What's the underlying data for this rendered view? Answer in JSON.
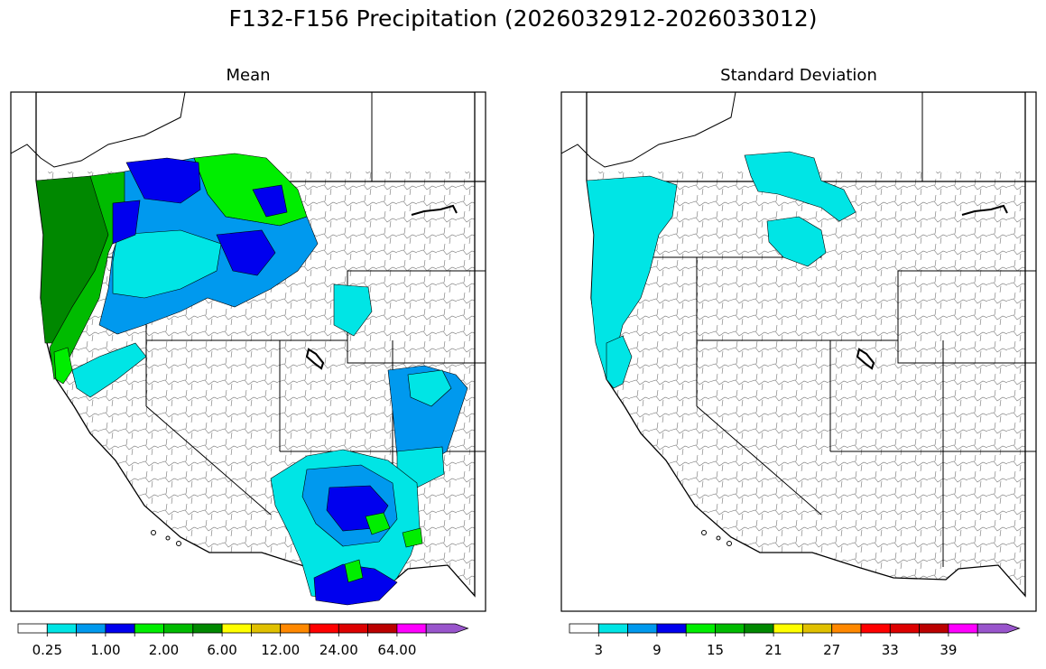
{
  "suptitle": "F132-F156 Precipitation (2026032912-2026033012)",
  "panels": [
    {
      "title": "Mean",
      "colorbar": {
        "colors": [
          "#ffffff",
          "#00e5e5",
          "#0099ee",
          "#0000ee",
          "#00ee00",
          "#00bb00",
          "#008800",
          "#ffff00",
          "#e0c000",
          "#ff8800",
          "#ff0000",
          "#dd0000",
          "#bb0000",
          "#ff00ff",
          "#9955cc"
        ],
        "tick_labels": [
          "0.25",
          "1.00",
          "2.00",
          "6.00",
          "12.00",
          "24.00",
          "64.00"
        ],
        "extend": "max"
      }
    },
    {
      "title": "Standard Deviation",
      "colorbar": {
        "colors": [
          "#ffffff",
          "#00e5e5",
          "#0099ee",
          "#0000ee",
          "#00ee00",
          "#00bb00",
          "#008800",
          "#ffff00",
          "#e0c000",
          "#ff8800",
          "#ff0000",
          "#dd0000",
          "#bb0000",
          "#ff00ff",
          "#9955cc"
        ],
        "tick_labels": [
          "3",
          "9",
          "15",
          "21",
          "27",
          "33",
          "39"
        ],
        "extend": "max"
      }
    }
  ],
  "chart_data": [
    {
      "type": "heatmap",
      "subtype": "basin choropleth map (western United States)",
      "title": "Mean",
      "legend": "bottom",
      "scale_ticks": [
        "0.25",
        "1.00",
        "2.00",
        "6.00",
        "12.00",
        "24.00",
        "64.00"
      ],
      "regions": [
        {
          "region": "Pacific Northwest coast",
          "color": "#008800"
        },
        {
          "region": "Cascades / western Oregon",
          "color": "#00bb00"
        },
        {
          "region": "Northern Rockies (Idaho, western Montana)",
          "color": "#0099ee"
        },
        {
          "region": "Northern Rockies core",
          "color": "#0000ee"
        },
        {
          "region": "Northwest Montana",
          "color": "#00ee00"
        },
        {
          "region": "Southern Rockies / Colorado",
          "color": "#0099ee"
        },
        {
          "region": "Arizona / New Mexico",
          "color": "#0000ee"
        },
        {
          "region": "Great Basin, California, Nevada, Utah",
          "color": "#ffffff"
        }
      ]
    },
    {
      "type": "heatmap",
      "subtype": "basin choropleth map (western United States)",
      "title": "Standard Deviation",
      "legend": "bottom",
      "scale_ticks": [
        "3",
        "9",
        "15",
        "21",
        "27",
        "33",
        "39"
      ],
      "regions": [
        {
          "region": "Pacific Northwest coast",
          "color": "#00e5e5"
        },
        {
          "region": "Northern Idaho / western Montana",
          "color": "#00e5e5"
        },
        {
          "region": "Rest of western US",
          "color": "#ffffff"
        }
      ]
    }
  ]
}
